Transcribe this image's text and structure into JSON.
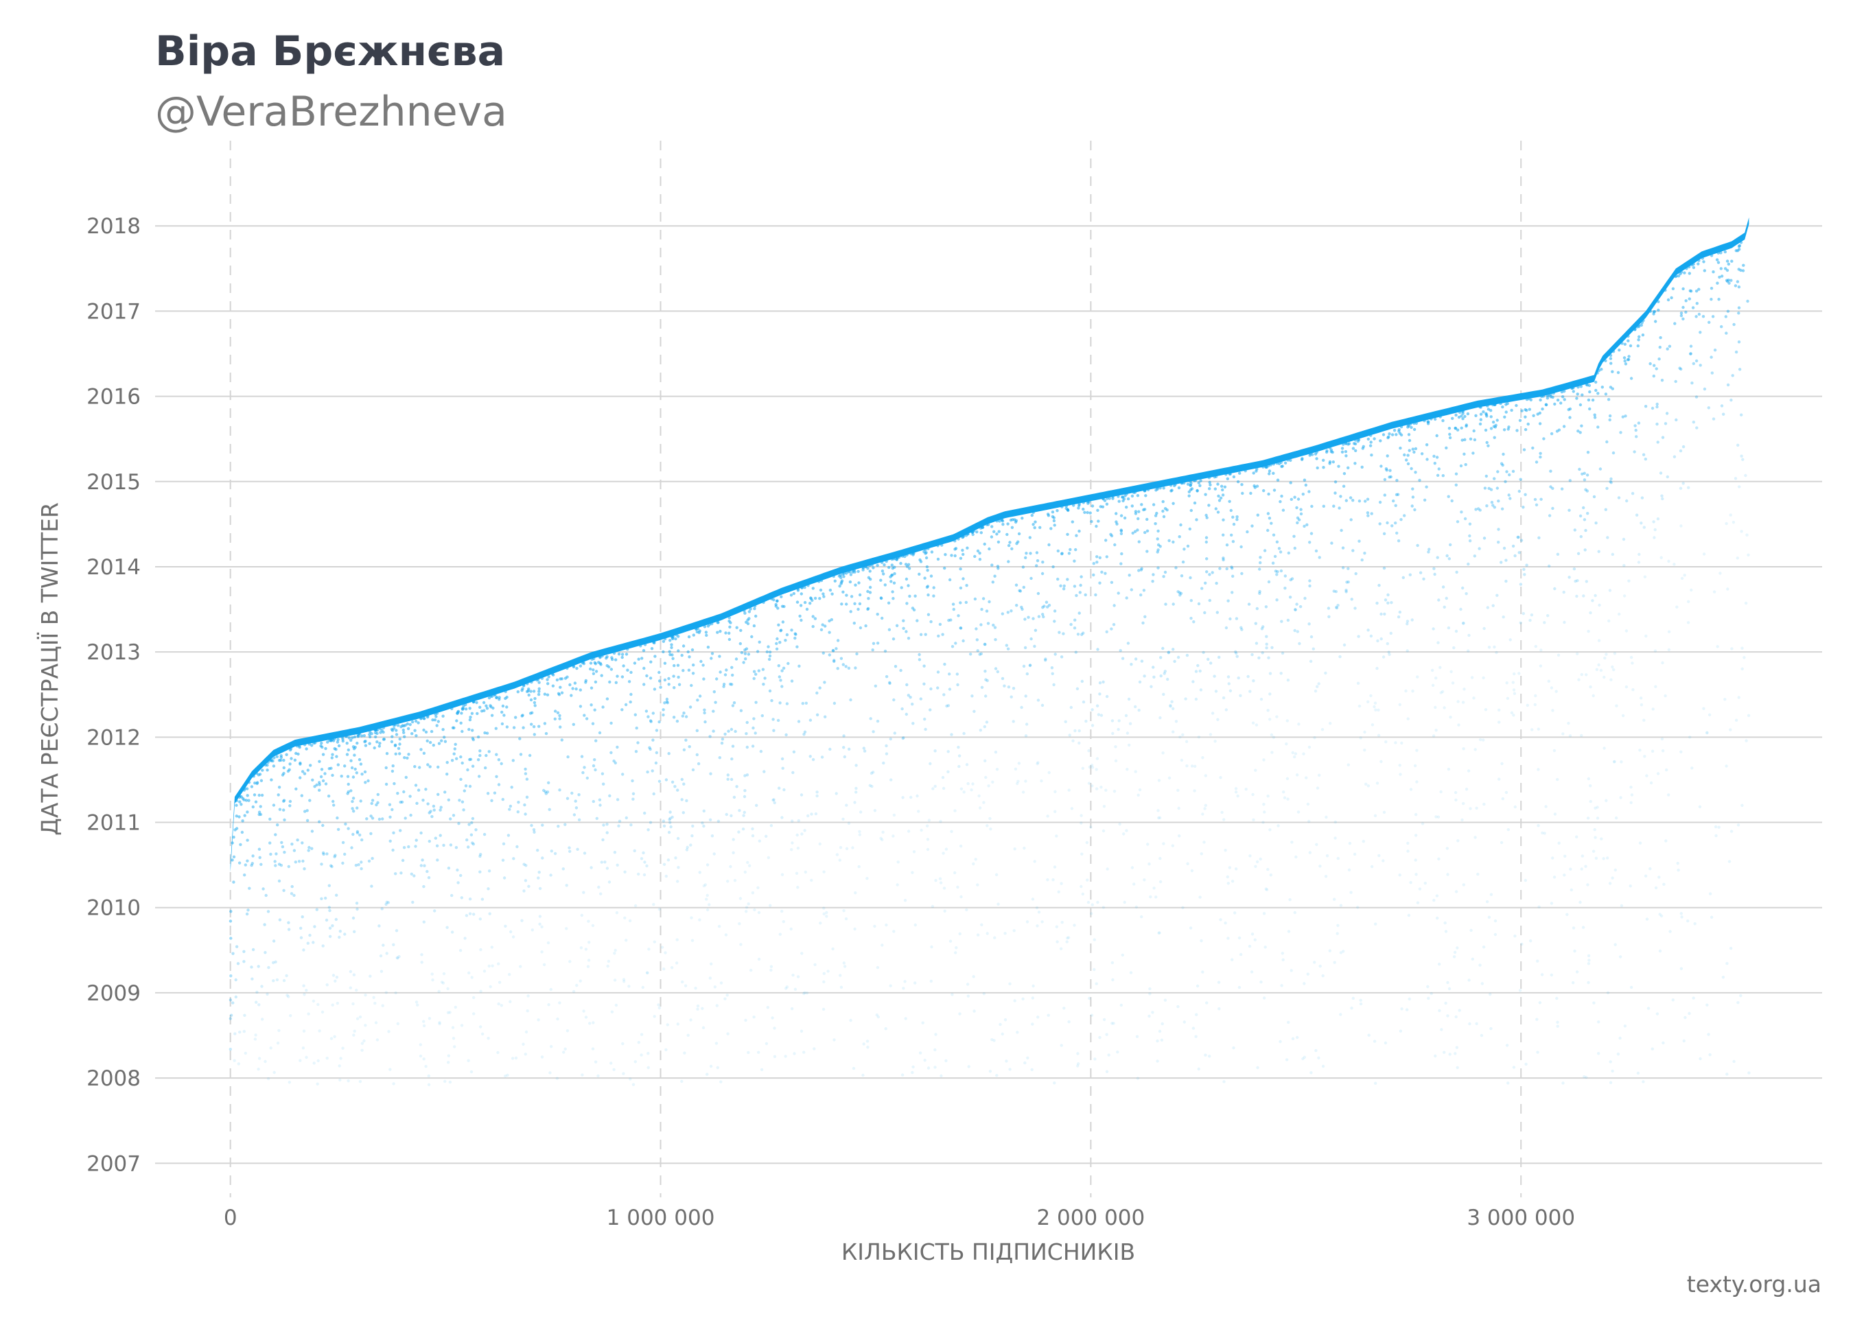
{
  "header": {
    "title": "Віра Брєжнєва",
    "subtitle": "@VeraBrezhneva"
  },
  "credit": "texty.org.ua",
  "colors": {
    "points": "#14a6ee",
    "grid": "#d4d4d4",
    "text": "#6e6e6e",
    "title": "#3a3f4b"
  },
  "chart_data": {
    "type": "scatter",
    "title": "Віра Брєжнєва",
    "subtitle": "@VeraBrezhneva",
    "xlabel": "КІЛЬКІСТЬ ПІДПИСНИКІВ",
    "ylabel": "ДАТА РЕЄСТРАЦІЇ В TWITTER",
    "xlim": [
      -175000,
      3700000
    ],
    "ylim": [
      2006.6,
      2019.0
    ],
    "x_ticks": [
      0,
      1000000,
      2000000,
      3000000
    ],
    "x_tick_labels": [
      "0",
      "1 000 000",
      "2 000 000",
      "3 000 000"
    ],
    "y_ticks": [
      2007,
      2008,
      2009,
      2010,
      2011,
      2012,
      2013,
      2014,
      2015,
      2016,
      2017,
      2018
    ],
    "y_tick_labels": [
      "2007",
      "2008",
      "2009",
      "2010",
      "2011",
      "2012",
      "2013",
      "2014",
      "2015",
      "2016",
      "2017",
      "2018"
    ],
    "grid": {
      "y": "solid",
      "x": "dashed"
    },
    "total_followers": 3530000,
    "upper_envelope": {
      "follower_index": [
        0,
        10000,
        50000,
        100000,
        150000,
        300000,
        440000,
        660000,
        840000,
        1000000,
        1140000,
        1280000,
        1420000,
        1560000,
        1680000,
        1760000,
        1800000,
        2000000,
        2200000,
        2400000,
        2520000,
        2700000,
        2900000,
        3050000,
        3100000,
        3170000,
        3185000,
        3290000,
        3360000,
        3420000,
        3490000,
        3520000,
        3530000
      ],
      "year": [
        2010.5,
        2011.3,
        2011.6,
        2011.85,
        2011.97,
        2012.12,
        2012.3,
        2012.65,
        2013.0,
        2013.22,
        2013.45,
        2013.75,
        2014.0,
        2014.2,
        2014.38,
        2014.58,
        2014.65,
        2014.85,
        2015.05,
        2015.25,
        2015.42,
        2015.7,
        2015.95,
        2016.08,
        2016.15,
        2016.25,
        2016.45,
        2017.0,
        2017.5,
        2017.7,
        2017.82,
        2017.92,
        2018.1
      ]
    },
    "marker": "tiny semi-transparent dots, one per follower"
  }
}
